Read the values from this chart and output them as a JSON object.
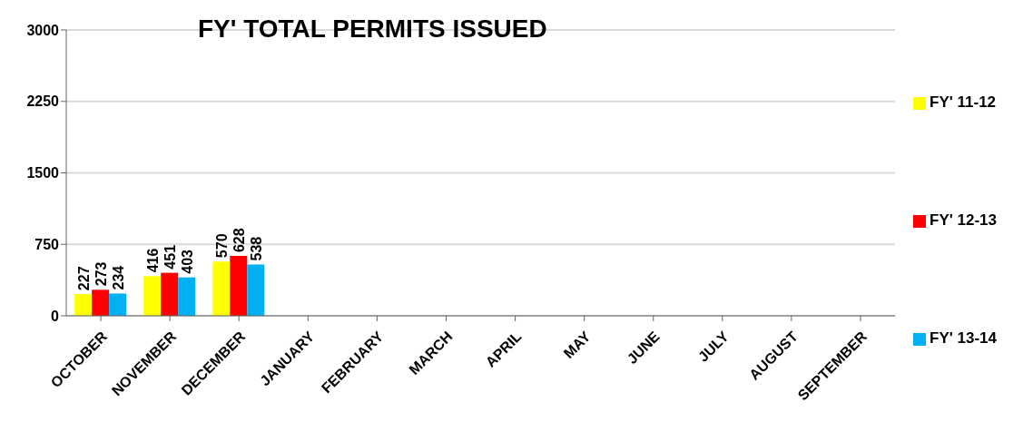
{
  "chart_data": {
    "type": "bar",
    "title": "FY' TOTAL PERMITS ISSUED",
    "categories": [
      "OCTOBER",
      "NOVEMBER",
      "DECEMBER",
      "JANUARY",
      "FEBRUARY",
      "MARCH",
      "APRIL",
      "MAY",
      "JUNE",
      "JULY",
      "AUGUST",
      "SEPTEMBER"
    ],
    "series": [
      {
        "name": "FY' 11-12",
        "color": "#ffff00",
        "values": [
          227,
          416,
          570,
          null,
          null,
          null,
          null,
          null,
          null,
          null,
          null,
          null
        ]
      },
      {
        "name": "FY' 12-13",
        "color": "#ff0000",
        "values": [
          273,
          451,
          628,
          null,
          null,
          null,
          null,
          null,
          null,
          null,
          null,
          null
        ]
      },
      {
        "name": "FY' 13-14",
        "color": "#00b0f0",
        "values": [
          234,
          403,
          538,
          null,
          null,
          null,
          null,
          null,
          null,
          null,
          null,
          null
        ]
      }
    ],
    "ylim": [
      0,
      3000
    ],
    "yticks": [
      0,
      750,
      1500,
      2250,
      3000
    ],
    "grid": "y",
    "legend": "right",
    "data_labels": true
  }
}
